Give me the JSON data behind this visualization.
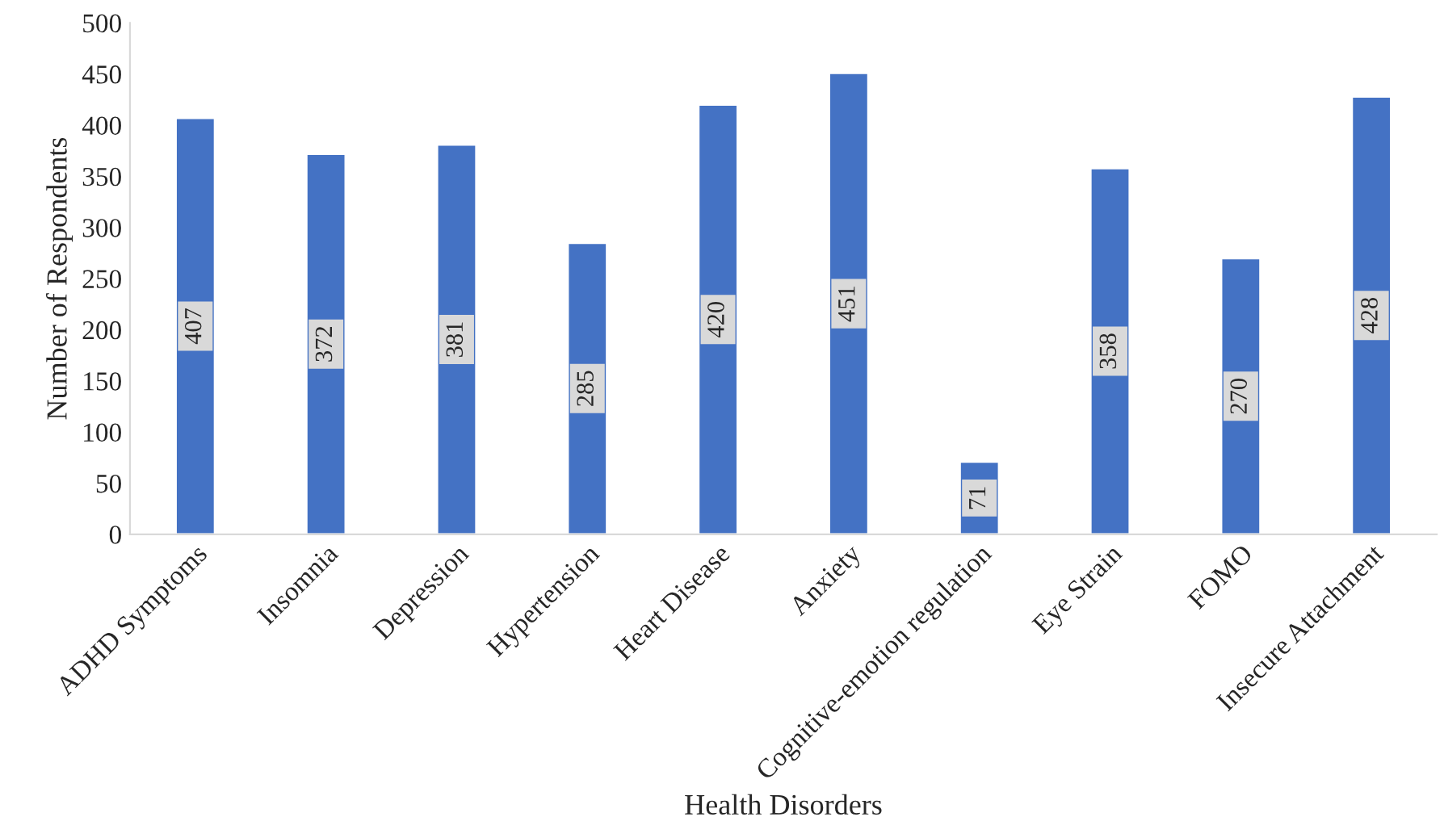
{
  "chart_data": {
    "type": "bar",
    "xlabel": "Health Disorders",
    "ylabel": "Number of Respondents",
    "categories": [
      "ADHD Symptoms",
      "Insomnia",
      "Depression",
      "Hypertension",
      "Heart Disease",
      "Anxiety",
      "Cognitive-emotion regulation",
      "Eye Strain",
      "FOMO",
      "Insecure Attachment"
    ],
    "values": [
      407,
      372,
      381,
      285,
      420,
      451,
      71,
      358,
      270,
      428
    ],
    "color": "#4472c4",
    "ylim": [
      0,
      500
    ],
    "yticks": [
      0,
      50,
      100,
      150,
      200,
      250,
      300,
      350,
      400,
      450,
      500
    ],
    "data_labels": true,
    "grid": false
  }
}
